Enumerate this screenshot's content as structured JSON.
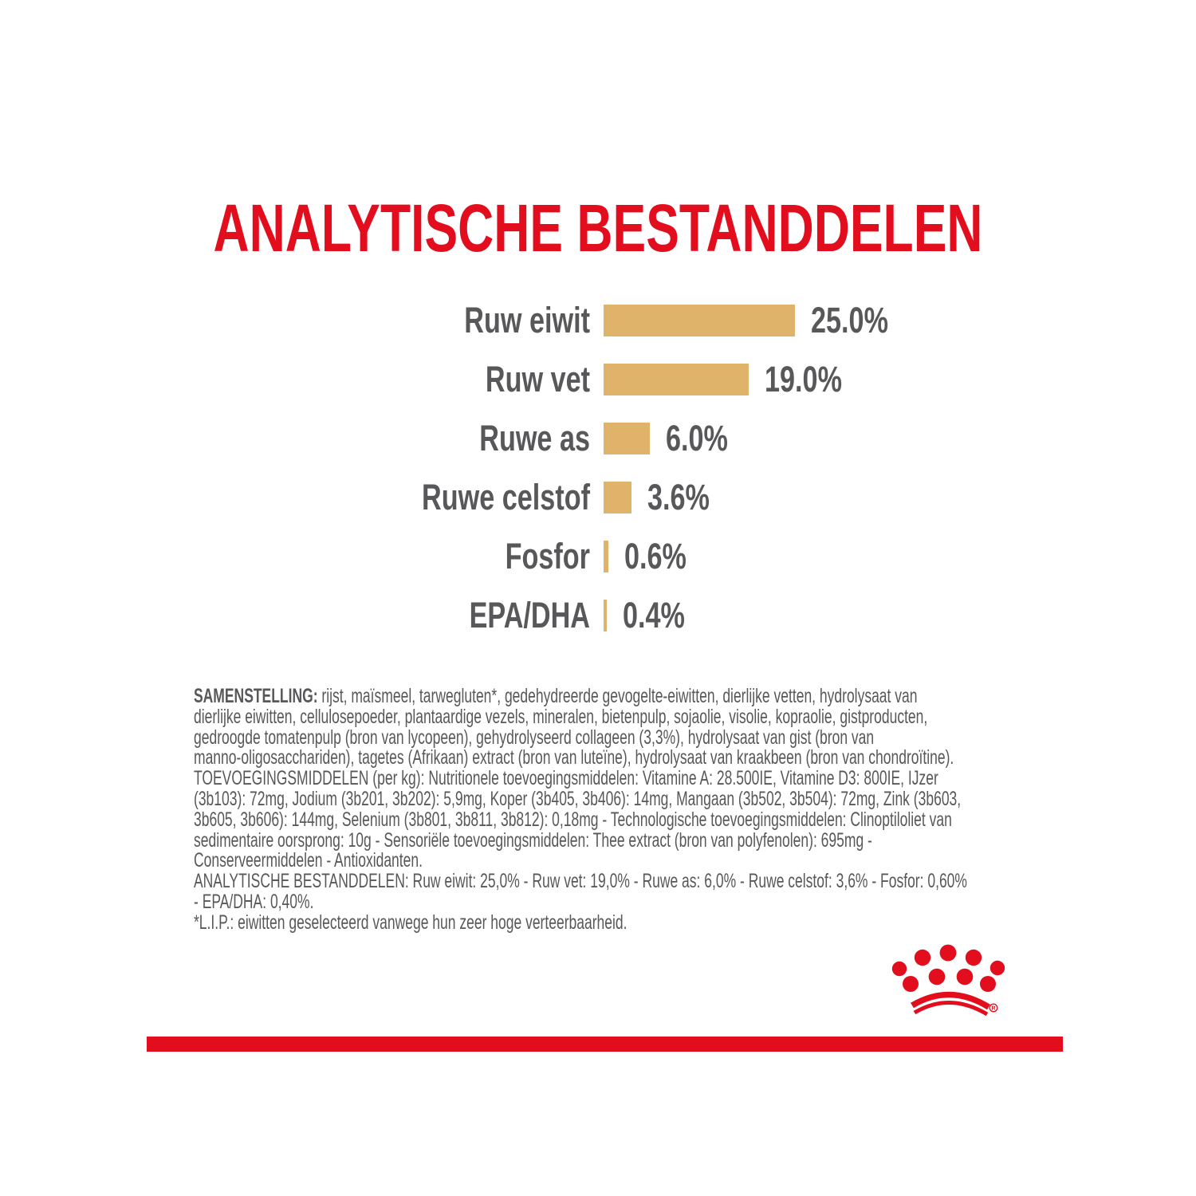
{
  "colors": {
    "brand_red": "#e20e1e",
    "bar_gold": "#dfb369",
    "text_gray": "#58585a"
  },
  "title": {
    "text": "ANALYTISCHE BESTANDDELEN"
  },
  "chart_data": {
    "type": "bar",
    "orientation": "horizontal",
    "title": "ANALYTISCHE BESTANDDELEN",
    "categories": [
      "Ruw eiwit",
      "Ruw vet",
      "Ruwe as",
      "Ruwe celstof",
      "Fosfor",
      "EPA/DHA"
    ],
    "values": [
      25.0,
      19.0,
      6.0,
      3.6,
      0.6,
      0.4
    ],
    "value_labels": [
      "25.0%",
      "19.0%",
      "6.0%",
      "3.6%",
      "0.6%",
      "0.4%"
    ],
    "unit": "%",
    "xlim": [
      0,
      25
    ],
    "grid": false,
    "legend": false,
    "bar_color": "#dfb369",
    "label_color": "#58585a"
  },
  "composition": {
    "label": "SAMENSTELLING:",
    "line1_rest": " rijst, maïsmeel, tarwegluten*, gedehydreerde gevogelte-eiwitten, dierlijke vetten, hydrolysaat van",
    "lines": [
      "dierlijke eiwitten, cellulosepoeder, plantaardige vezels, mineralen, bietenpulp, sojaolie, visolie, kopraolie, gistproducten,",
      "gedroogde tomatenpulp (bron van lycopeen), gehydrolyseerd collageen (3,3%), hydrolysaat van gist (bron van",
      "manno-oligosacchariden), tagetes (Afrikaan) extract (bron van luteïne), hydrolysaat van kraakbeen (bron van chondroïtine).",
      "TOEVOEGINGSMIDDELEN (per kg): Nutritionele toevoegingsmiddelen: Vitamine A: 28.500IE, Vitamine D3: 800IE, IJzer",
      "(3b103): 72mg, Jodium (3b201, 3b202): 5,9mg, Koper (3b405, 3b406): 14mg, Mangaan (3b502, 3b504): 72mg, Zink (3b603,",
      "3b605, 3b606): 144mg, Selenium (3b801, 3b811, 3b812): 0,18mg - Technologische toevoegingsmiddelen: Clinoptiloliet van",
      "sedimentaire oorsprong: 10g - Sensoriële toevoegingsmiddelen: Thee extract (bron van polyfenolen): 695mg -",
      "Conserveermiddelen - Antioxidanten.",
      "ANALYTISCHE BESTANDDELEN: Ruw eiwit: 25,0% - Ruw vet: 19,0% - Ruwe as: 6,0% - Ruwe celstof: 3,6% - Fosfor: 0,60%",
      "- EPA/DHA: 0,40%.",
      "*L.I.P.: eiwitten geselecteerd vanwege hun zeer hoge verteerbaarheid."
    ]
  },
  "logo": {
    "registered_mark": "R"
  }
}
